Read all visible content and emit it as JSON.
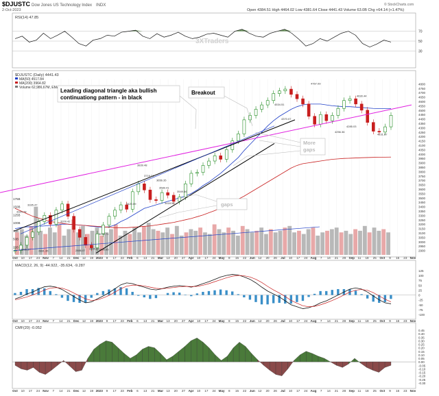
{
  "header": {
    "symbol": "$DJUSTC",
    "name": "Dow Jones US Technology Index",
    "exchange": "INDX",
    "date": "2-Oct-2023",
    "ohlc": "Open 4384.51  High 4464.02  Low 4381.64  Close 4441.43  Volume 63.0B  Chg +64.14 (+1.47%)",
    "source": "© StockCharts.com"
  },
  "rsi": {
    "label": "RSI(14) 47.85",
    "levels": [
      70,
      50,
      30
    ],
    "watermark": "3XTraders"
  },
  "main_panel": {
    "legend_title": "$DJUSTC (Daily) 4441.43",
    "legend_items": [
      {
        "text": "MA(50) 4517.84",
        "color": "#1f3fc8"
      },
      {
        "text": "MA(200) 3964.82",
        "color": "#c81e1e"
      },
      {
        "text": "Volume 62,986,67M, EMA(60)",
        "color": "#777777"
      }
    ],
    "annotations": {
      "triangle": "Leading diagonal triangle aka bullish continuationg pattern - in black",
      "breakout": "Breakout",
      "more_gaps": "More gaps",
      "gaps": "gaps"
    },
    "price_labels": [
      "4767.09",
      "4630.44",
      "4534.51",
      "4370.07",
      "4285.03",
      "4256.36",
      "4231.67",
      "3839.48",
      "3719.34",
      "3656.35",
      "3549.66",
      "3589.41",
      "3418.59",
      "3420.09",
      "3335.47",
      "3320.78",
      "3209.42",
      "3071.71",
      "2896.37",
      "2881.35",
      "2896.85",
      "2895.87",
      "2886.07"
    ],
    "y_ticks": [
      "4800",
      "4750",
      "4700",
      "4650",
      "4600",
      "4550",
      "4500",
      "4450",
      "4400",
      "4350",
      "4300",
      "4250",
      "4200",
      "4150",
      "4100",
      "4050",
      "4000",
      "3950",
      "3900",
      "3850",
      "3800",
      "3750",
      "3700",
      "3650",
      "3600",
      "3550",
      "3500",
      "3450",
      "3400",
      "3350",
      "3300",
      "3250",
      "3200",
      "3150",
      "3100",
      "3050",
      "3000",
      "2950",
      "2900"
    ],
    "volume_ticks": [
      "175B",
      "150B",
      "125B",
      "100B",
      "75B",
      "50B",
      "25B"
    ]
  },
  "macd": {
    "label": "MACD(12, 26, 9) -44.922, -35.634, -9.287",
    "y_ticks": [
      "125",
      "100",
      "75",
      "50",
      "25",
      "0",
      "-25",
      "-50",
      "-75",
      "-100"
    ]
  },
  "cmf": {
    "label": "CMF(20) -0.052",
    "y_ticks": [
      "0.45",
      "0.40",
      "0.35",
      "0.30",
      "0.25",
      "0.20",
      "0.15",
      "0.10",
      "0.05",
      "0.00",
      "-0.05",
      "-0.10",
      "-0.15",
      "-0.20",
      "-0.25",
      "-0.30"
    ]
  },
  "x_axis": [
    "Oct",
    "10",
    "17",
    "24",
    "Nov",
    "7",
    "14",
    "21",
    "Dec",
    "12",
    "19",
    "2023",
    "9",
    "17",
    "23",
    "Feb",
    "6",
    "13",
    "21",
    "Mar",
    "13",
    "20",
    "27",
    "Apr",
    "10",
    "17",
    "24",
    "May",
    "8",
    "15",
    "22",
    "Jun",
    "12",
    "20",
    "26",
    "Jul",
    "10",
    "17",
    "24",
    "Aug",
    "7",
    "14",
    "21",
    "28",
    "Sep",
    "11",
    "18",
    "25",
    "Oct",
    "9",
    "16",
    "23",
    "Nov"
  ],
  "colors": {
    "up_candle": "#1e8a1e",
    "down_candle": "#c81e1e",
    "ma50": "#1f3fc8",
    "ma200": "#c81e1e",
    "magenta_line": "#e01ee0",
    "cmf_pos": "#4a7a3a",
    "cmf_neg": "#8a4a4a",
    "volume": "#b8b8b8",
    "volume_up": "#e8a8a8"
  },
  "chart_data": [
    {
      "type": "line",
      "title": "RSI(14)",
      "ylim": [
        0,
        100
      ],
      "values": [
        55,
        60,
        48,
        52,
        66,
        55,
        62,
        70,
        58,
        45,
        40,
        52,
        55,
        62,
        60,
        68,
        70,
        72,
        60,
        55,
        65,
        58,
        62,
        68,
        60,
        55,
        58,
        64,
        66,
        62,
        58,
        70,
        74,
        66,
        60,
        58,
        66,
        70,
        74,
        66,
        54,
        40,
        45,
        55,
        50,
        58,
        66,
        70,
        62,
        45,
        38,
        44,
        52,
        48
      ]
    },
    {
      "type": "line",
      "title": "$DJUSTC (Daily) 4441.43",
      "x_range": [
        "Oct 2022",
        "Nov 2023"
      ],
      "ylim": [
        2850,
        4850
      ],
      "series": [
        {
          "name": "Close",
          "values": [
            2900,
            2960,
            3050,
            3110,
            3230,
            3300,
            3200,
            3360,
            3430,
            3290,
            3140,
            3050,
            2960,
            2930,
            3090,
            3190,
            3290,
            3360,
            3420,
            3370,
            3570,
            3660,
            3590,
            3480,
            3470,
            3560,
            3530,
            3460,
            3510,
            3660,
            3780,
            3790,
            3870,
            3920,
            3980,
            3940,
            4050,
            4150,
            4230,
            4390,
            4440,
            4510,
            4560,
            4610,
            4690,
            4720,
            4740,
            4680,
            4630,
            4570,
            4430,
            4340,
            4450,
            4380,
            4440,
            4520,
            4610,
            4630,
            4570,
            4500,
            4360,
            4260,
            4250,
            4310,
            4441
          ]
        },
        {
          "name": "MA(50) 4517.84",
          "values": [
            3150,
            3160,
            3170,
            3170,
            3175,
            3180,
            3185,
            3190,
            3200,
            3200,
            3195,
            3190,
            3185,
            3175,
            3170,
            3165,
            3170,
            3190,
            3230,
            3260,
            3300,
            3340,
            3380,
            3400,
            3420,
            3440,
            3460,
            3480,
            3500,
            3520,
            3550,
            3590,
            3640,
            3680,
            3730,
            3780,
            3840,
            3900,
            3960,
            4040,
            4110,
            4180,
            4250,
            4320,
            4380,
            4430,
            4470,
            4510,
            4540,
            4560,
            4570,
            4570,
            4570,
            4560,
            4550,
            4545,
            4540,
            4540,
            4535,
            4530,
            4525,
            4520,
            4518,
            4518,
            4518
          ]
        },
        {
          "name": "MA(200) 3964.82",
          "values": [
            3380,
            3350,
            3320,
            3290,
            3270,
            3250,
            3230,
            3220,
            3210,
            3200,
            3195,
            3190,
            3185,
            3180,
            3175,
            3170,
            3165,
            3160,
            3160,
            3160,
            3165,
            3170,
            3175,
            3180,
            3190,
            3200,
            3210,
            3220,
            3235,
            3250,
            3265,
            3285,
            3305,
            3330,
            3355,
            3385,
            3415,
            3450,
            3485,
            3520,
            3560,
            3600,
            3640,
            3680,
            3720,
            3760,
            3800,
            3840,
            3870,
            3890,
            3900,
            3910,
            3920,
            3930,
            3940,
            3945,
            3950,
            3952,
            3955,
            3958,
            3960,
            3962,
            3963,
            3964,
            3965
          ]
        }
      ]
    },
    {
      "type": "bar",
      "title": "Volume",
      "ylim": [
        0,
        175
      ],
      "values": [
        70,
        80,
        60,
        90,
        150,
        75,
        65,
        85,
        70,
        95,
        60,
        80,
        110,
        70,
        90,
        65,
        75,
        85,
        60,
        70,
        80,
        95,
        60,
        75,
        65,
        85,
        70,
        90,
        100,
        80,
        75,
        70,
        85,
        65,
        90,
        60,
        70,
        80,
        75,
        85,
        70,
        65,
        95,
        80,
        70,
        85,
        75,
        60,
        90,
        80,
        70,
        75,
        85,
        65,
        80,
        70,
        75,
        85,
        90,
        70,
        75,
        65,
        80,
        85,
        60,
        70,
        75,
        80,
        85,
        70,
        75,
        65,
        80,
        75,
        90,
        70,
        85,
        75,
        80,
        70
      ]
    },
    {
      "type": "line",
      "title": "MACD(12, 26, 9)",
      "ylim": [
        -110,
        135
      ],
      "series": [
        {
          "name": "MACD",
          "values": [
            -20,
            -10,
            5,
            15,
            30,
            42,
            45,
            40,
            28,
            10,
            -8,
            -25,
            -40,
            -35,
            -20,
            -5,
            12,
            32,
            52,
            62,
            58,
            48,
            40,
            30,
            26,
            32,
            40,
            45,
            48,
            45,
            40,
            48,
            58,
            68,
            80,
            92,
            100,
            105,
            102,
            92,
            80,
            62,
            40,
            20,
            5,
            -10,
            -30,
            -50,
            -60,
            -70,
            -65,
            -55,
            -40,
            -30,
            -15,
            0,
            15,
            30,
            36,
            30,
            15,
            -5,
            -25,
            -40,
            -45
          ]
        },
        {
          "name": "Signal",
          "values": [
            -25,
            -18,
            -10,
            0,
            12,
            25,
            35,
            38,
            35,
            25,
            10,
            -5,
            -20,
            -28,
            -25,
            -15,
            -2,
            15,
            32,
            45,
            50,
            50,
            46,
            40,
            34,
            32,
            35,
            38,
            42,
            44,
            43,
            44,
            50,
            58,
            68,
            78,
            88,
            96,
            100,
            98,
            92,
            80,
            64,
            44,
            26,
            10,
            -8,
            -28,
            -42,
            -55,
            -60,
            -58,
            -50,
            -40,
            -28,
            -15,
            0,
            15,
            25,
            28,
            24,
            12,
            -5,
            -22,
            -35
          ]
        }
      ]
    },
    {
      "type": "area",
      "title": "CMF(20)",
      "ylim": [
        -0.35,
        0.45
      ],
      "values": [
        -0.05,
        -0.1,
        -0.12,
        -0.08,
        -0.15,
        -0.18,
        -0.12,
        -0.05,
        0.02,
        -0.06,
        -0.14,
        -0.12,
        0.05,
        0.18,
        0.25,
        0.3,
        0.28,
        0.2,
        0.12,
        0.05,
        0.1,
        0.18,
        0.22,
        0.2,
        0.12,
        0.03,
        0.08,
        0.15,
        0.22,
        0.3,
        0.34,
        0.28,
        0.2,
        0.1,
        0.02,
        0.08,
        0.2,
        0.28,
        0.22,
        0.12,
        0.03,
        -0.05,
        -0.12,
        -0.18,
        -0.2,
        -0.1,
        0.02,
        0.1,
        0.15,
        0.12,
        0.08,
        0.05,
        0.0,
        -0.05,
        -0.08,
        -0.03,
        0.05,
        -0.02,
        -0.08,
        -0.12,
        -0.15,
        -0.08,
        -0.05
      ]
    }
  ]
}
